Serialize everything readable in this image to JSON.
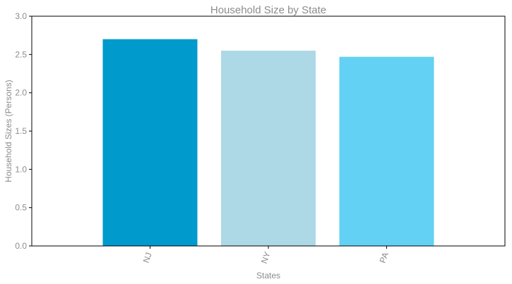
{
  "chart_data": {
    "type": "bar",
    "title": "Household Size by State",
    "xlabel": "States",
    "ylabel": "Household Sizes (Persons)",
    "categories": [
      "NJ",
      "NY",
      "PA"
    ],
    "values": [
      2.7,
      2.55,
      2.47
    ],
    "colors": [
      "#009acd",
      "#add8e6",
      "#63d1f4"
    ],
    "ylim": [
      0,
      3.0
    ],
    "yticks": [
      "0.0",
      "0.5",
      "1.0",
      "1.5",
      "2.0",
      "2.5",
      "3.0"
    ],
    "grid": false,
    "legend": "none"
  }
}
